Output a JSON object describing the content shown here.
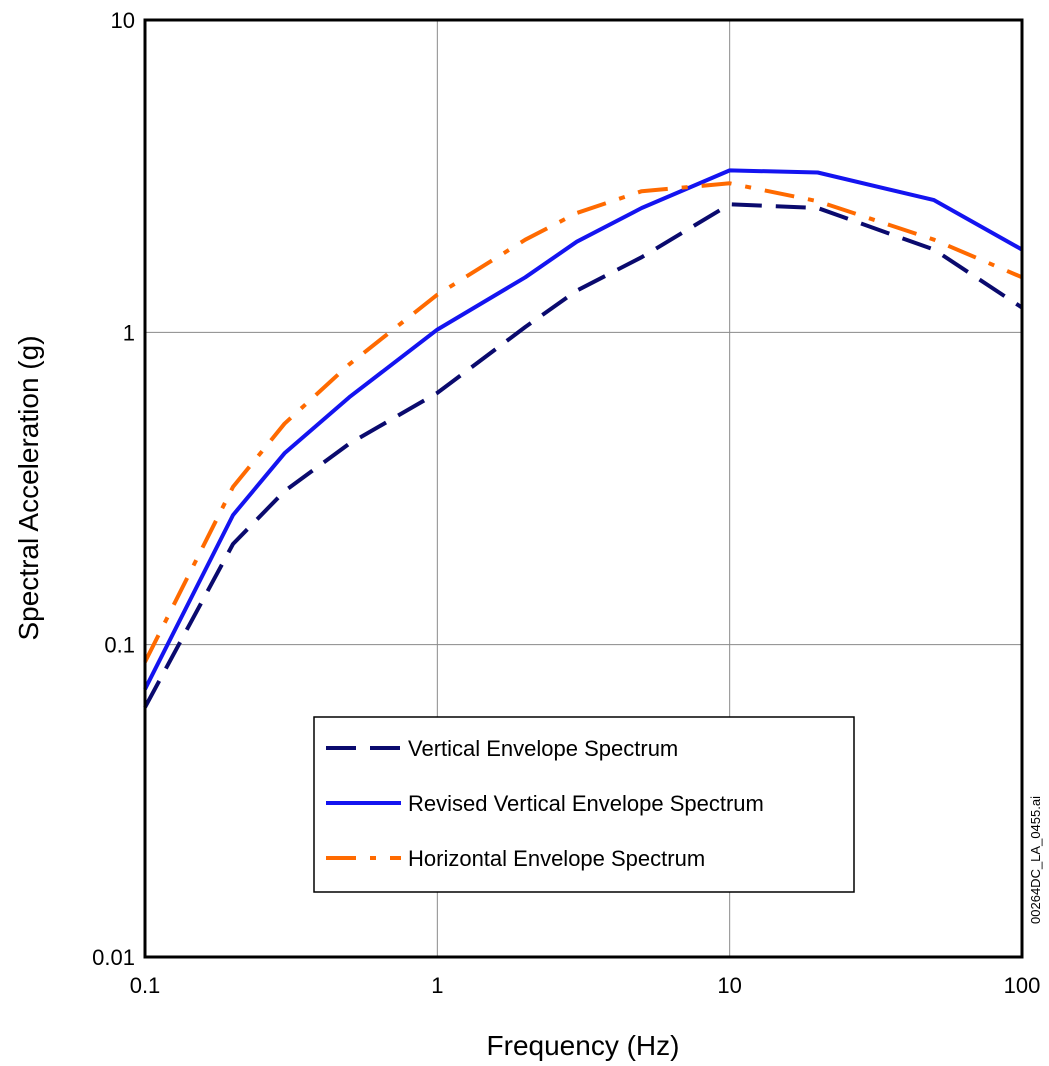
{
  "chart_data": {
    "type": "line",
    "xscale": "log",
    "yscale": "log",
    "xlim": [
      0.1,
      100
    ],
    "ylim": [
      0.01,
      10
    ],
    "grid": true,
    "xlabel": "Frequency (Hz)",
    "ylabel": "Spectral Acceleration (g)",
    "x_ticks": [
      0.1,
      1,
      10,
      100
    ],
    "x_tick_labels": [
      "0.1",
      "1",
      "10",
      "100"
    ],
    "y_ticks": [
      0.01,
      0.1,
      1,
      10
    ],
    "y_tick_labels": [
      "0.01",
      "0.1",
      "1",
      "10"
    ],
    "legend_position": "lower-center",
    "series": [
      {
        "name": "Vertical Envelope Spectrum",
        "color": "#0a0a6e",
        "style": "dashed",
        "x": [
          0.1,
          0.2,
          0.3,
          0.5,
          1,
          2,
          3,
          5,
          10,
          20,
          50,
          100
        ],
        "y": [
          0.063,
          0.21,
          0.31,
          0.44,
          0.64,
          1.04,
          1.36,
          1.74,
          2.57,
          2.5,
          1.84,
          1.2
        ]
      },
      {
        "name": "Revised Vertical Envelope Spectrum",
        "color": "#1414f0",
        "style": "solid",
        "x": [
          0.1,
          0.2,
          0.3,
          0.5,
          1,
          2,
          3,
          5,
          10,
          20,
          50,
          100
        ],
        "y": [
          0.072,
          0.26,
          0.41,
          0.62,
          1.02,
          1.5,
          1.95,
          2.5,
          3.3,
          3.25,
          2.65,
          1.84
        ]
      },
      {
        "name": "Horizontal Envelope Spectrum",
        "color": "#ff6a00",
        "style": "dash-dot",
        "x": [
          0.1,
          0.2,
          0.3,
          0.5,
          1,
          2,
          3,
          5,
          10,
          20,
          50,
          100
        ],
        "y": [
          0.088,
          0.32,
          0.51,
          0.79,
          1.32,
          1.98,
          2.41,
          2.83,
          3.0,
          2.63,
          1.98,
          1.5
        ]
      }
    ]
  },
  "file_label": "00264DC_LA_0455.ai"
}
